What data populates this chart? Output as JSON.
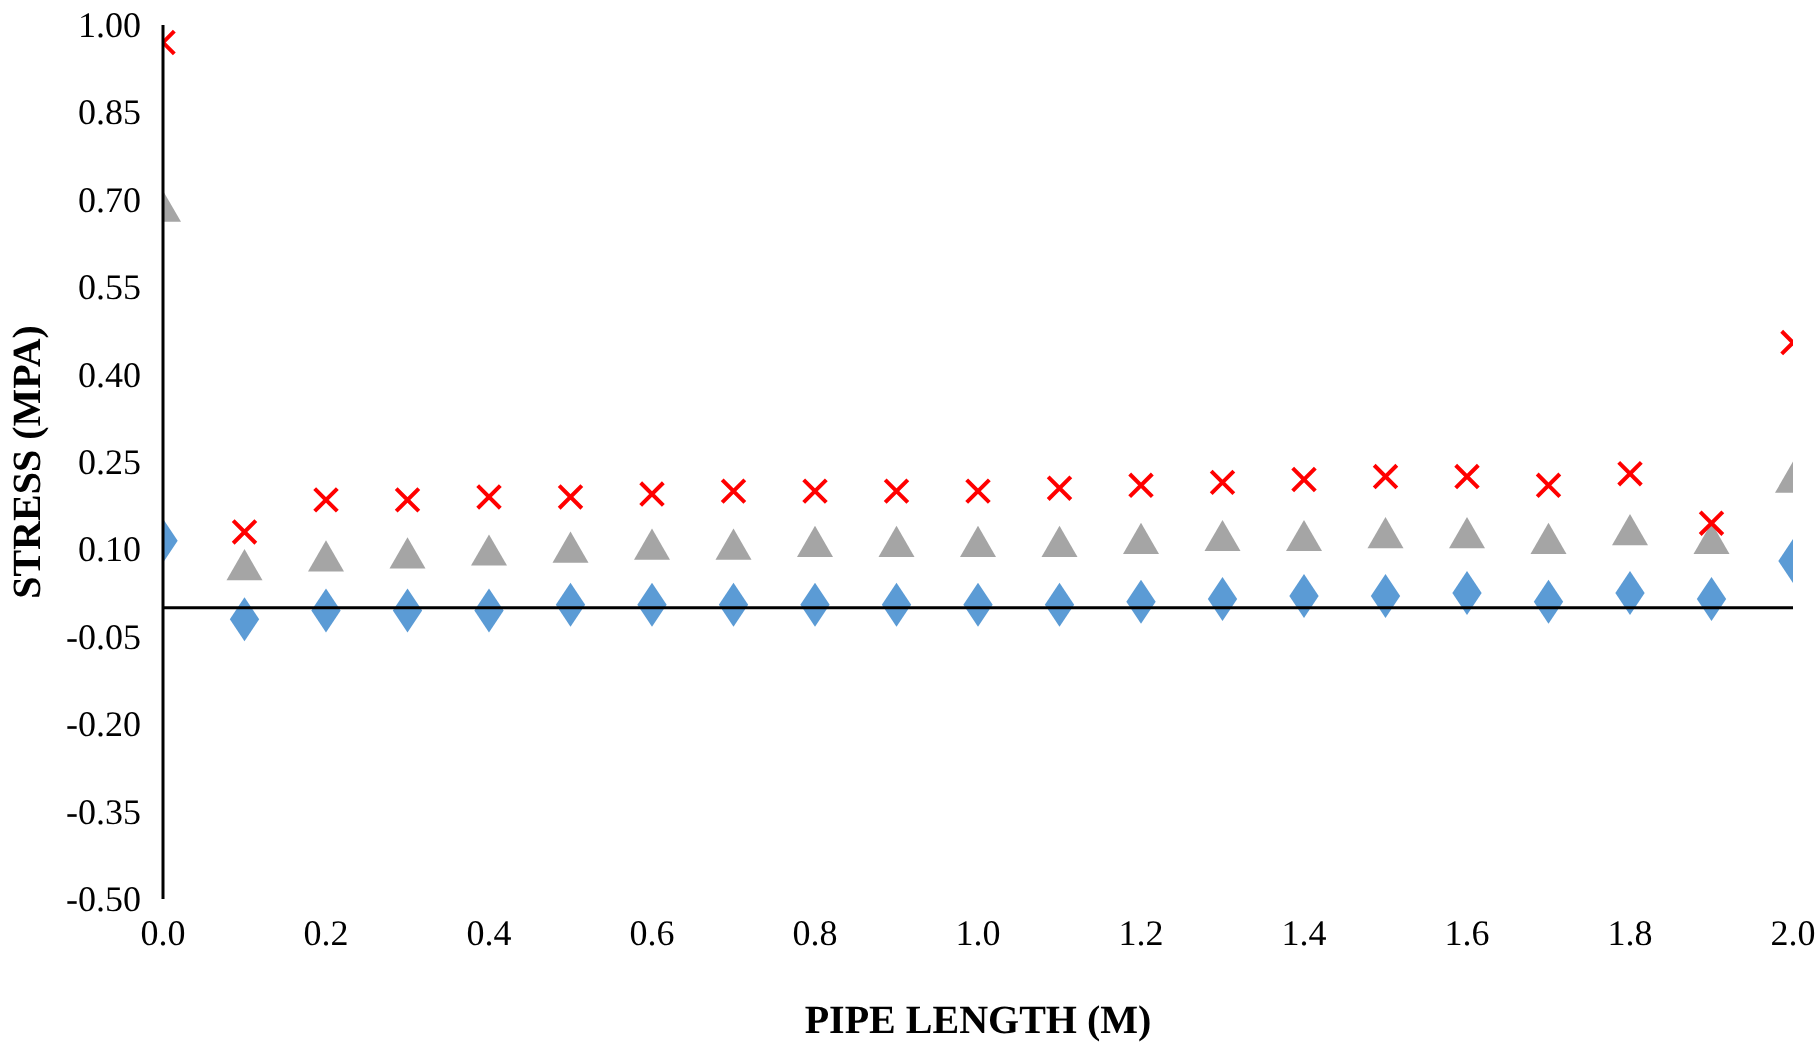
{
  "chart_data": {
    "type": "scatter",
    "xlabel": "PIPE LENGTH (M)",
    "ylabel": "STRESS (MPA)",
    "x": [
      0.0,
      0.1,
      0.2,
      0.3,
      0.4,
      0.5,
      0.6,
      0.7,
      0.8,
      0.9,
      1.0,
      1.1,
      1.2,
      1.3,
      1.4,
      1.5,
      1.6,
      1.7,
      1.8,
      1.9,
      2.0
    ],
    "xlim": [
      0,
      2
    ],
    "ylim": [
      -0.5,
      1.0
    ],
    "xticks": [
      {
        "value": 0,
        "label": "0.0"
      },
      {
        "value": 0.2,
        "label": "0.2"
      },
      {
        "value": 0.4,
        "label": "0.4"
      },
      {
        "value": 0.6,
        "label": "0.6"
      },
      {
        "value": 0.8,
        "label": "0.8"
      },
      {
        "value": 1.0,
        "label": "1.0"
      },
      {
        "value": 1.2,
        "label": "1.2"
      },
      {
        "value": 1.4,
        "label": "1.4"
      },
      {
        "value": 1.6,
        "label": "1.6"
      },
      {
        "value": 1.8,
        "label": "1.8"
      },
      {
        "value": 2.0,
        "label": "2.0"
      }
    ],
    "yticks": [
      {
        "value": -0.5,
        "label": "-0.50"
      },
      {
        "value": -0.35,
        "label": "-0.35"
      },
      {
        "value": -0.2,
        "label": "-0.20"
      },
      {
        "value": -0.05,
        "label": "-0.05"
      },
      {
        "value": 0.1,
        "label": "0.10"
      },
      {
        "value": 0.25,
        "label": "0.25"
      },
      {
        "value": 0.4,
        "label": "0.40"
      },
      {
        "value": 0.55,
        "label": "0.55"
      },
      {
        "value": 0.7,
        "label": "0.70"
      },
      {
        "value": 0.85,
        "label": "0.85"
      },
      {
        "value": 1.0,
        "label": "1.00"
      }
    ],
    "grid": false,
    "ref_lines": [
      {
        "axis": "y",
        "value": 0,
        "color": "#000000"
      }
    ],
    "series": [
      {
        "color": "#5b9bd5",
        "marker": "diamond",
        "values": [
          0.115,
          -0.02,
          -0.005,
          -0.005,
          -0.005,
          0.005,
          0.005,
          0.005,
          0.005,
          0.005,
          0.005,
          0.005,
          0.01,
          0.015,
          0.02,
          0.02,
          0.025,
          0.01,
          0.025,
          0.015,
          0.08
        ]
      },
      {
        "color": "#a5a5a5",
        "marker": "triangle",
        "values": [
          0.68,
          0.065,
          0.08,
          0.085,
          0.09,
          0.095,
          0.1,
          0.1,
          0.105,
          0.105,
          0.105,
          0.105,
          0.11,
          0.115,
          0.115,
          0.12,
          0.12,
          0.11,
          0.125,
          0.11,
          0.215
        ]
      },
      {
        "color": "#ff0000",
        "marker": "cross",
        "values": [
          0.97,
          0.13,
          0.185,
          0.185,
          0.19,
          0.19,
          0.195,
          0.2,
          0.2,
          0.2,
          0.2,
          0.205,
          0.21,
          0.215,
          0.22,
          0.225,
          0.225,
          0.21,
          0.23,
          0.145,
          0.455
        ]
      }
    ]
  }
}
